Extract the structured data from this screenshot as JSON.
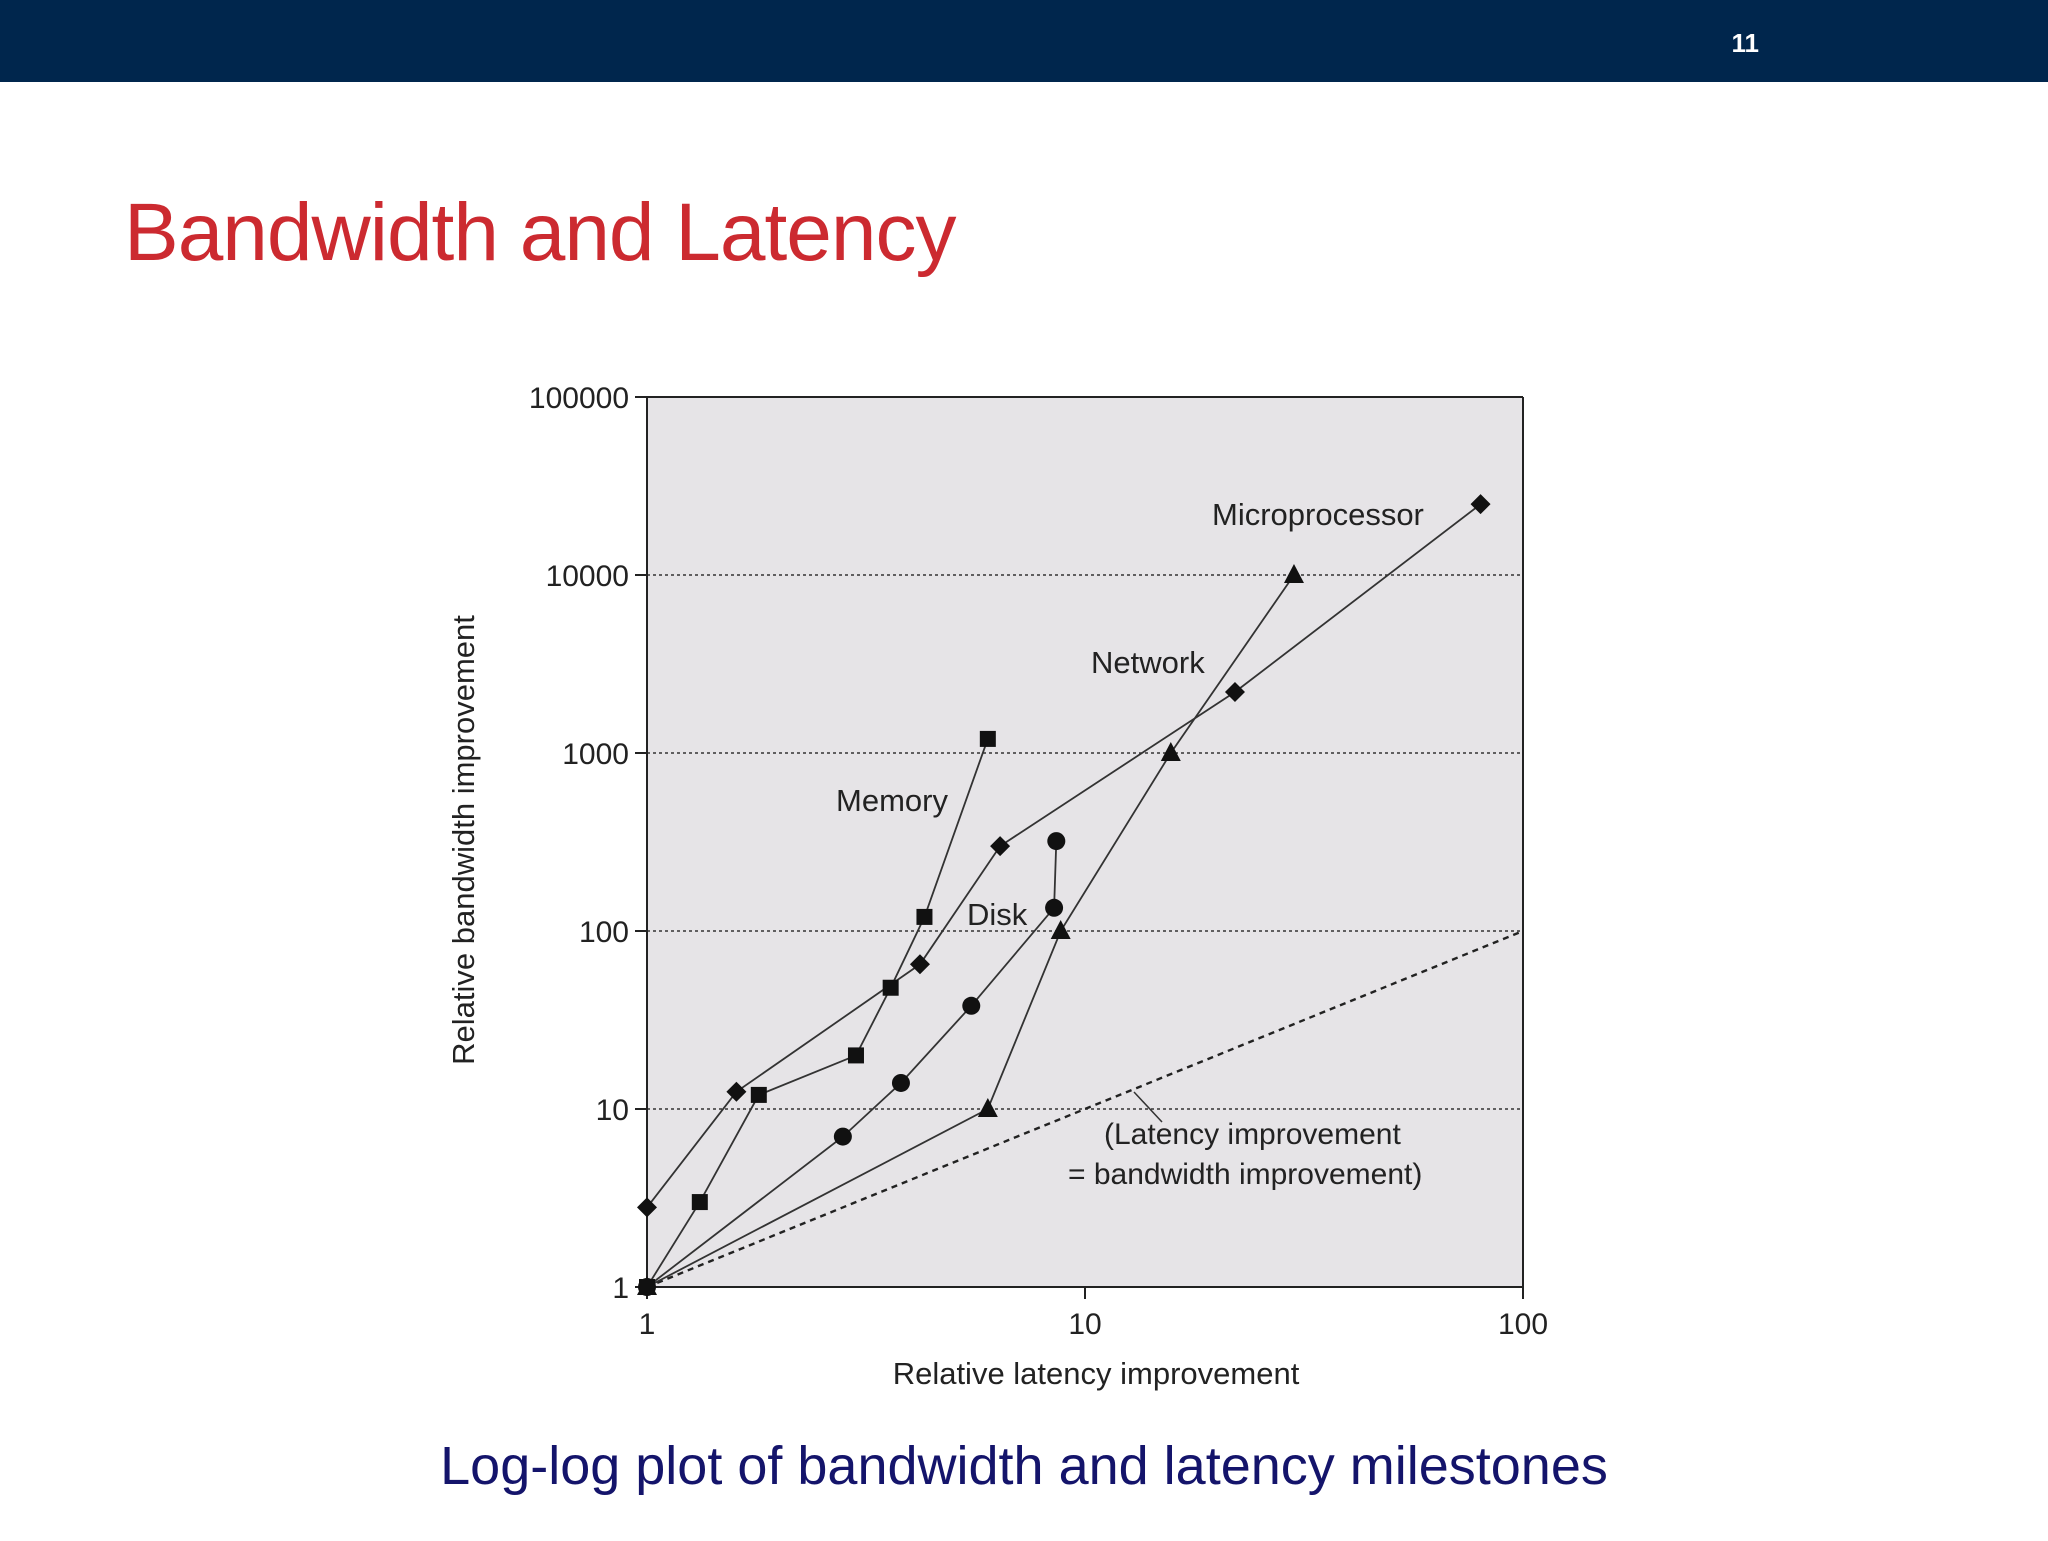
{
  "slide": {
    "number": "11",
    "title": "Bandwidth and Latency",
    "caption": "Log-log plot of bandwidth and latency milestones"
  },
  "colors": {
    "topbar": "#00264d",
    "title": "#cc2a30",
    "caption": "#14146b",
    "plot_background": "#e6e4e7"
  },
  "chart_data": {
    "type": "scatter",
    "scale": "log-log",
    "xlabel": "Relative latency improvement",
    "ylabel": "Relative bandwidth improvement",
    "xlim": [
      1,
      100
    ],
    "ylim": [
      1,
      100000
    ],
    "xticks": [
      {
        "value": 1,
        "label": "1"
      },
      {
        "value": 10,
        "label": "10"
      },
      {
        "value": 100,
        "label": "100"
      }
    ],
    "yticks": [
      {
        "value": 1,
        "label": "1"
      },
      {
        "value": 10,
        "label": "10"
      },
      {
        "value": 100,
        "label": "100"
      },
      {
        "value": 1000,
        "label": "1000"
      },
      {
        "value": 10000,
        "label": "10000"
      },
      {
        "value": 100000,
        "label": "100000"
      }
    ],
    "grid": "horizontal dotted",
    "series": [
      {
        "name": "Microprocessor",
        "marker": "triangle",
        "points": [
          [
            1,
            1
          ],
          [
            6,
            10
          ],
          [
            8.8,
            100
          ],
          [
            15.7,
            1000
          ],
          [
            30,
            10000
          ]
        ]
      },
      {
        "name": "Network",
        "marker": "diamond",
        "points": [
          [
            1,
            2.8
          ],
          [
            1.6,
            12.5
          ],
          [
            4.2,
            65
          ],
          [
            6.4,
            300
          ],
          [
            22,
            2200
          ],
          [
            80,
            25000
          ]
        ]
      },
      {
        "name": "Memory",
        "marker": "square",
        "points": [
          [
            1,
            1
          ],
          [
            1.32,
            3
          ],
          [
            1.8,
            12
          ],
          [
            3,
            20
          ],
          [
            3.6,
            48
          ],
          [
            4.3,
            120
          ],
          [
            6,
            1200
          ]
        ]
      },
      {
        "name": "Disk",
        "marker": "circle",
        "points": [
          [
            1,
            1
          ],
          [
            2.8,
            7
          ],
          [
            3.8,
            14
          ],
          [
            5.5,
            38
          ],
          [
            8.5,
            135
          ],
          [
            8.6,
            320
          ]
        ]
      }
    ],
    "reference_line": {
      "points": [
        [
          1,
          1
        ],
        [
          100,
          100
        ]
      ],
      "label_line1": "(Latency improvement",
      "label_line2": "= bandwidth improvement)"
    }
  }
}
